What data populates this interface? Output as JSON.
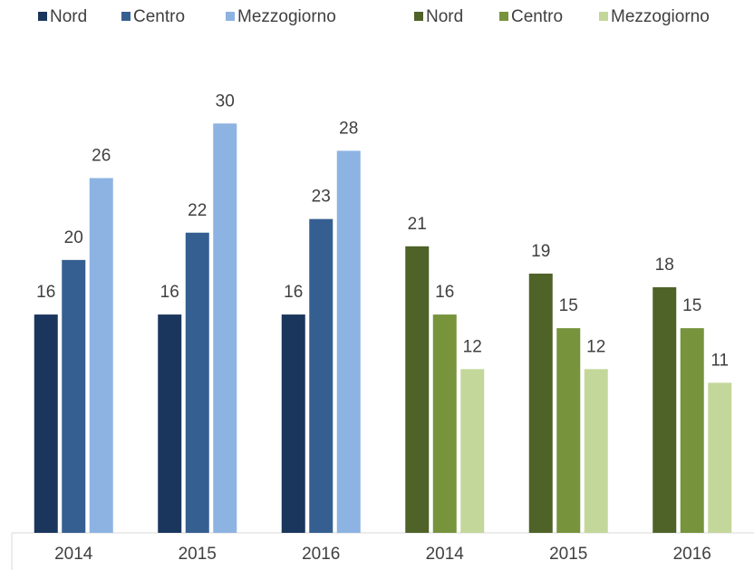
{
  "chart_data": {
    "type": "bar",
    "categories": [
      "2014",
      "2015",
      "2016",
      "2014",
      "2015",
      "2016"
    ],
    "series": [
      {
        "name": "Nord",
        "color": "#1b365d",
        "values": [
          16,
          16,
          16,
          null,
          null,
          null
        ]
      },
      {
        "name": "Centro",
        "color": "#365f91",
        "values": [
          20,
          22,
          23,
          null,
          null,
          null
        ]
      },
      {
        "name": "Mezzogiorno",
        "color": "#8db3e2",
        "values": [
          26,
          30,
          28,
          null,
          null,
          null
        ]
      },
      {
        "name": "Nord",
        "color": "#4f6228",
        "values": [
          null,
          null,
          null,
          21,
          19,
          18
        ]
      },
      {
        "name": "Centro",
        "color": "#77933c",
        "values": [
          null,
          null,
          null,
          16,
          15,
          15
        ]
      },
      {
        "name": "Mezzogiorno",
        "color": "#c4d79b",
        "values": [
          null,
          null,
          null,
          12,
          12,
          11
        ]
      }
    ],
    "ylim": [
      0,
      35
    ],
    "legend": "top"
  }
}
